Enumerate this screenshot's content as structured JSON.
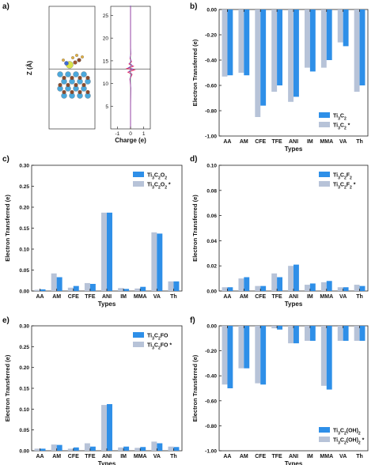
{
  "panels": {
    "a": {
      "label": "a)",
      "ylabel": "Z (Å)",
      "xlabel": "Charge (e)",
      "xticks": [
        "-1",
        "0",
        "1"
      ],
      "yticks": [
        "5",
        "10",
        "15",
        "20",
        "25"
      ],
      "ylim": [
        0,
        27
      ],
      "xlim": [
        -1.5,
        1.5
      ],
      "profile_z": [
        0,
        5,
        9,
        11,
        12,
        12.5,
        13,
        13.3,
        13.8,
        14.3,
        14.8,
        15.5,
        16.5,
        18,
        27
      ],
      "profile_charge": [
        0,
        0,
        0.02,
        -0.05,
        0.12,
        -0.2,
        0.3,
        -0.28,
        0.22,
        -0.12,
        0.08,
        -0.04,
        0.02,
        0,
        0
      ],
      "horizontal_line_z": 13.2
    },
    "b": {
      "label": "b)"
    },
    "c": {
      "label": "c)"
    },
    "d": {
      "label": "d)"
    },
    "e": {
      "label": "e)"
    },
    "f": {
      "label": "f)"
    }
  },
  "colors": {
    "blue": "#2e8fe8",
    "gray": "#b7c3d8"
  },
  "chart_data": [
    {
      "panel": "b",
      "type": "bar",
      "categories": [
        "AA",
        "AM",
        "CFE",
        "TFE",
        "ANI",
        "IM",
        "MMA",
        "VA",
        "Th"
      ],
      "series": [
        {
          "name": "Ti₃C₂ *",
          "color": "gray",
          "values": [
            -0.53,
            -0.5,
            -0.85,
            -0.65,
            -0.73,
            -0.46,
            -0.46,
            -0.26,
            -0.65
          ]
        },
        {
          "name": "Ti₃C₂",
          "color": "blue",
          "values": [
            -0.52,
            -0.52,
            -0.76,
            -0.6,
            -0.69,
            -0.49,
            -0.4,
            -0.29,
            -0.6
          ]
        }
      ],
      "xlabel": "Types",
      "ylabel": "Electron Transferred (e)",
      "ylim": [
        -1.0,
        0.0
      ],
      "yticks": [
        "0.00",
        "-0.20",
        "-0.40",
        "-0.60",
        "-0.80",
        "-1.00"
      ],
      "xaxis_at": "top",
      "legend": "bottom-right"
    },
    {
      "panel": "c",
      "type": "bar",
      "categories": [
        "AA",
        "AM",
        "CFE",
        "TFE",
        "ANI",
        "IM",
        "MMA",
        "VA",
        "Th"
      ],
      "series": [
        {
          "name": "Ti₃C₂O₂ *",
          "color": "gray",
          "values": [
            0.003,
            0.042,
            0.008,
            0.019,
            0.187,
            0.007,
            0.006,
            0.14,
            0.023
          ]
        },
        {
          "name": "Ti₃C₂O₂",
          "color": "blue",
          "values": [
            0.004,
            0.033,
            0.012,
            0.017,
            0.187,
            0.005,
            0.01,
            0.137,
            0.023
          ]
        }
      ],
      "xlabel": "Types",
      "ylabel": "Electron Transferred (e)",
      "ylim": [
        0,
        0.3
      ],
      "yticks": [
        "0.00",
        "0.05",
        "0.10",
        "0.15",
        "0.20",
        "0.25",
        "0.30"
      ],
      "xaxis_at": "bottom",
      "legend": "top-right"
    },
    {
      "panel": "d",
      "type": "bar",
      "categories": [
        "AA",
        "AM",
        "CFE",
        "TFE",
        "ANI",
        "IM",
        "MMA",
        "VA",
        "Th"
      ],
      "series": [
        {
          "name": "Ti₃C₂F₂ *",
          "color": "gray",
          "values": [
            0.003,
            0.01,
            0.004,
            0.014,
            0.02,
            0.005,
            0.007,
            0.003,
            0.005
          ]
        },
        {
          "name": "Ti₃C₂F₂",
          "color": "blue",
          "values": [
            0.003,
            0.011,
            0.004,
            0.011,
            0.021,
            0.006,
            0.008,
            0.003,
            0.004
          ]
        }
      ],
      "xlabel": "Types",
      "ylabel": "Electron Transferred (e)",
      "ylim": [
        0,
        0.1
      ],
      "yticks": [
        "0.00",
        "0.02",
        "0.04",
        "0.06",
        "0.08",
        "0.10"
      ],
      "xaxis_at": "bottom",
      "legend": "top-right"
    },
    {
      "panel": "e",
      "type": "bar",
      "categories": [
        "AA",
        "AM",
        "CFE",
        "TFE",
        "ANI",
        "IM",
        "MMA",
        "VA",
        "Th"
      ],
      "series": [
        {
          "name": "Ti₃C₂FO *",
          "color": "gray",
          "values": [
            0.005,
            0.015,
            0.005,
            0.018,
            0.11,
            0.008,
            0.007,
            0.022,
            0.01
          ]
        },
        {
          "name": "Ti₃C₂FO",
          "color": "blue",
          "values": [
            0.005,
            0.014,
            0.008,
            0.01,
            0.112,
            0.01,
            0.009,
            0.018,
            0.009
          ]
        }
      ],
      "xlabel": "Types",
      "ylabel": "Electron Transferred (e)",
      "ylim": [
        0,
        0.3
      ],
      "yticks": [
        "0.00",
        "0.05",
        "0.10",
        "0.15",
        "0.20",
        "0.25",
        "0.30"
      ],
      "xaxis_at": "bottom",
      "legend": "top-right"
    },
    {
      "panel": "f",
      "type": "bar",
      "categories": [
        "AA",
        "AM",
        "CFE",
        "TFE",
        "ANI",
        "IM",
        "MMA",
        "VA",
        "Th"
      ],
      "series": [
        {
          "name": "Ti₃C₂(OH)₂ *",
          "color": "gray",
          "values": [
            -0.47,
            -0.34,
            -0.46,
            -0.02,
            -0.14,
            -0.12,
            -0.48,
            -0.12,
            -0.12
          ]
        },
        {
          "name": "Ti₃C₂(OH)₂",
          "color": "blue",
          "values": [
            -0.5,
            -0.34,
            -0.47,
            -0.03,
            -0.14,
            -0.12,
            -0.51,
            -0.12,
            -0.12
          ]
        }
      ],
      "xlabel": "Types",
      "ylabel": "Electron Transferred (e)",
      "ylim": [
        -1.0,
        0.0
      ],
      "yticks": [
        "0.00",
        "-0.20",
        "-0.40",
        "-0.60",
        "-0.80",
        "-1.00"
      ],
      "xaxis_at": "top",
      "legend": "bottom-right"
    }
  ]
}
